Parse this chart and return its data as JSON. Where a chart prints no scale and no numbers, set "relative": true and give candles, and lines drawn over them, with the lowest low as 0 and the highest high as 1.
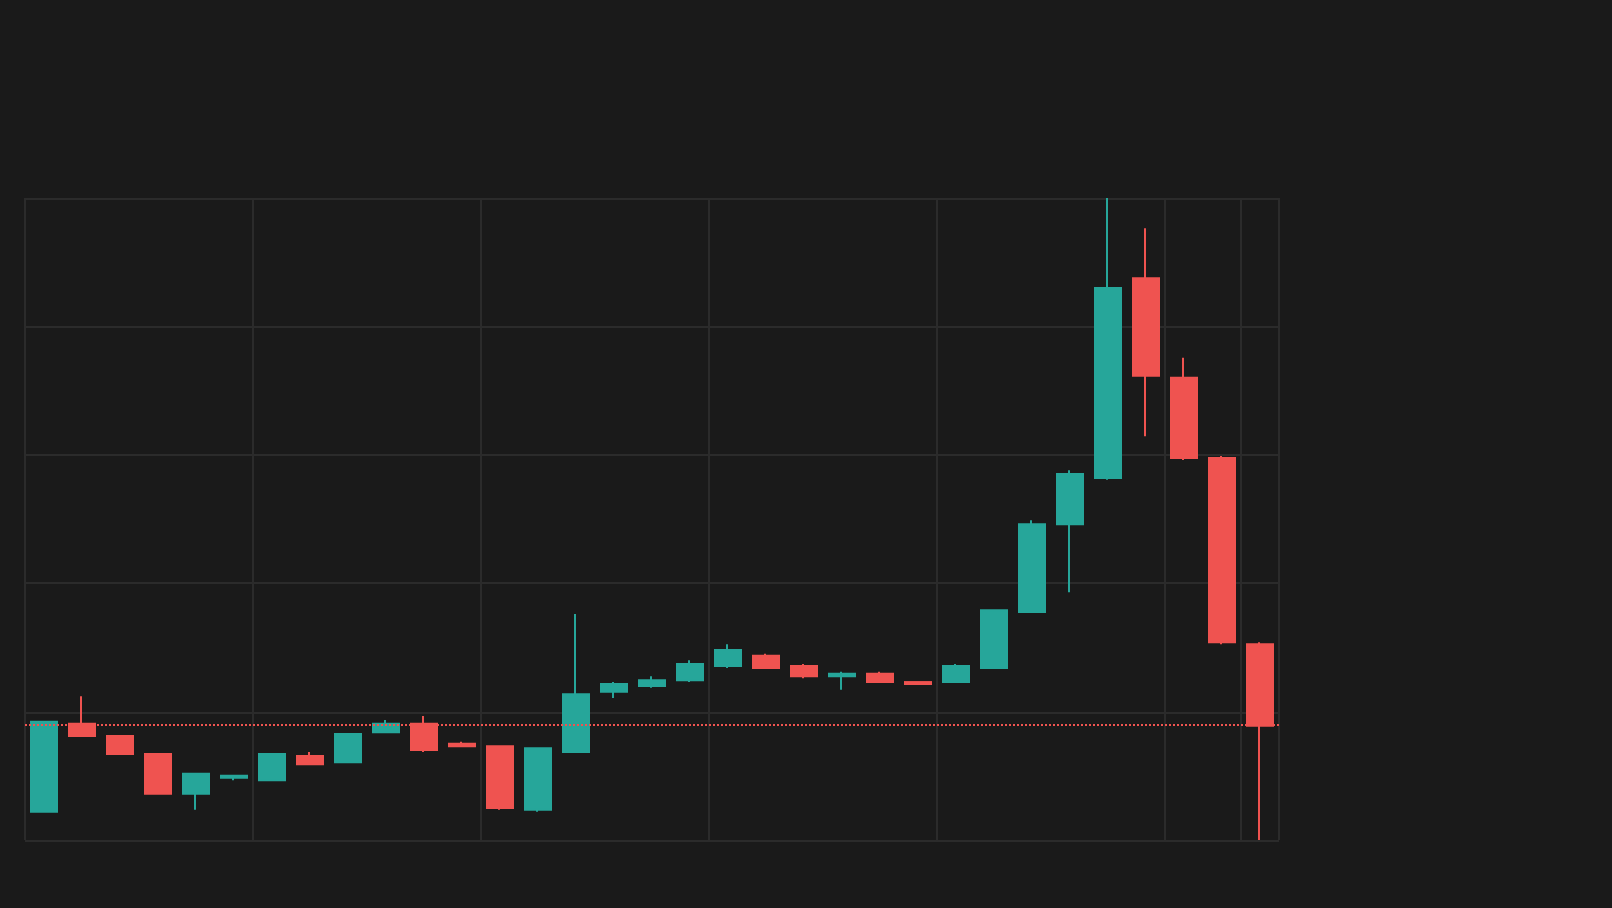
{
  "chart_data": {
    "type": "candlestick",
    "relative": true,
    "grid": true,
    "categories": [
      null,
      null,
      null,
      null,
      null,
      null,
      null,
      null,
      null,
      null,
      null,
      null,
      null,
      null,
      null,
      null,
      null,
      null,
      null,
      null,
      null,
      null,
      null,
      null,
      null,
      null,
      null,
      null,
      null,
      null,
      null,
      null,
      null
    ],
    "ohlc": [
      [
        0.044,
        0.184,
        0.044,
        0.184
      ],
      [
        0.181,
        0.224,
        0.162,
        0.162
      ],
      [
        0.162,
        0.162,
        0.134,
        0.134
      ],
      [
        0.134,
        0.134,
        0.072,
        0.072
      ],
      [
        0.072,
        0.103,
        0.047,
        0.103
      ],
      [
        0.097,
        0.1,
        0.093,
        0.1
      ],
      [
        0.093,
        0.134,
        0.093,
        0.134
      ],
      [
        0.131,
        0.137,
        0.118,
        0.118
      ],
      [
        0.121,
        0.165,
        0.121,
        0.165
      ],
      [
        0.168,
        0.187,
        0.168,
        0.181
      ],
      [
        0.181,
        0.193,
        0.137,
        0.14
      ],
      [
        0.15,
        0.153,
        0.146,
        0.146
      ],
      [
        0.146,
        0.146,
        0.047,
        0.05
      ],
      [
        0.047,
        0.143,
        0.044,
        0.143
      ],
      [
        0.137,
        0.352,
        0.137,
        0.227
      ],
      [
        0.231,
        0.246,
        0.221,
        0.243
      ],
      [
        0.24,
        0.255,
        0.237,
        0.249
      ],
      [
        0.249,
        0.28,
        0.246,
        0.274
      ],
      [
        0.271,
        0.305,
        0.268,
        0.296
      ],
      [
        0.287,
        0.29,
        0.268,
        0.268
      ],
      [
        0.271,
        0.274,
        0.252,
        0.255
      ],
      [
        0.255,
        0.262,
        0.234,
        0.259
      ],
      [
        0.259,
        0.262,
        0.246,
        0.246
      ],
      [
        0.246,
        0.246,
        0.243,
        0.243
      ],
      [
        0.246,
        0.274,
        0.246,
        0.271
      ],
      [
        0.268,
        0.358,
        0.268,
        0.358
      ],
      [
        0.355,
        0.498,
        0.355,
        0.492
      ],
      [
        0.492,
        0.576,
        0.386,
        0.57
      ],
      [
        0.564,
        1,
        0.561,
        0.86
      ],
      [
        0.875,
        0.953,
        0.629,
        0.723
      ],
      [
        0.72,
        0.751,
        0.592,
        0.595
      ],
      [
        0.595,
        0.598,
        0.305,
        0.308
      ],
      [
        0.305,
        0.308,
        0,
        0.178
      ]
    ],
    "colors": [
      "#26a69a",
      "#ef5350",
      "#ef5350",
      "#ef5350",
      "#26a69a",
      "#26a69a",
      "#26a69a",
      "#ef5350",
      "#26a69a",
      "#26a69a",
      "#ef5350",
      "#ef5350",
      "#ef5350",
      "#26a69a",
      "#26a69a",
      "#26a69a",
      "#26a69a",
      "#26a69a",
      "#26a69a",
      "#ef5350",
      "#ef5350",
      "#26a69a",
      "#ef5350",
      "#ef5350",
      "#26a69a",
      "#26a69a",
      "#26a69a",
      "#26a69a",
      "#26a69a",
      "#ef5350",
      "#ef5350",
      "#ef5350",
      "#ef5350"
    ],
    "ref_lines": [
      {
        "axis": "y",
        "value": 0.178,
        "color": "#ef5350",
        "line_style": "dotted"
      }
    ]
  }
}
